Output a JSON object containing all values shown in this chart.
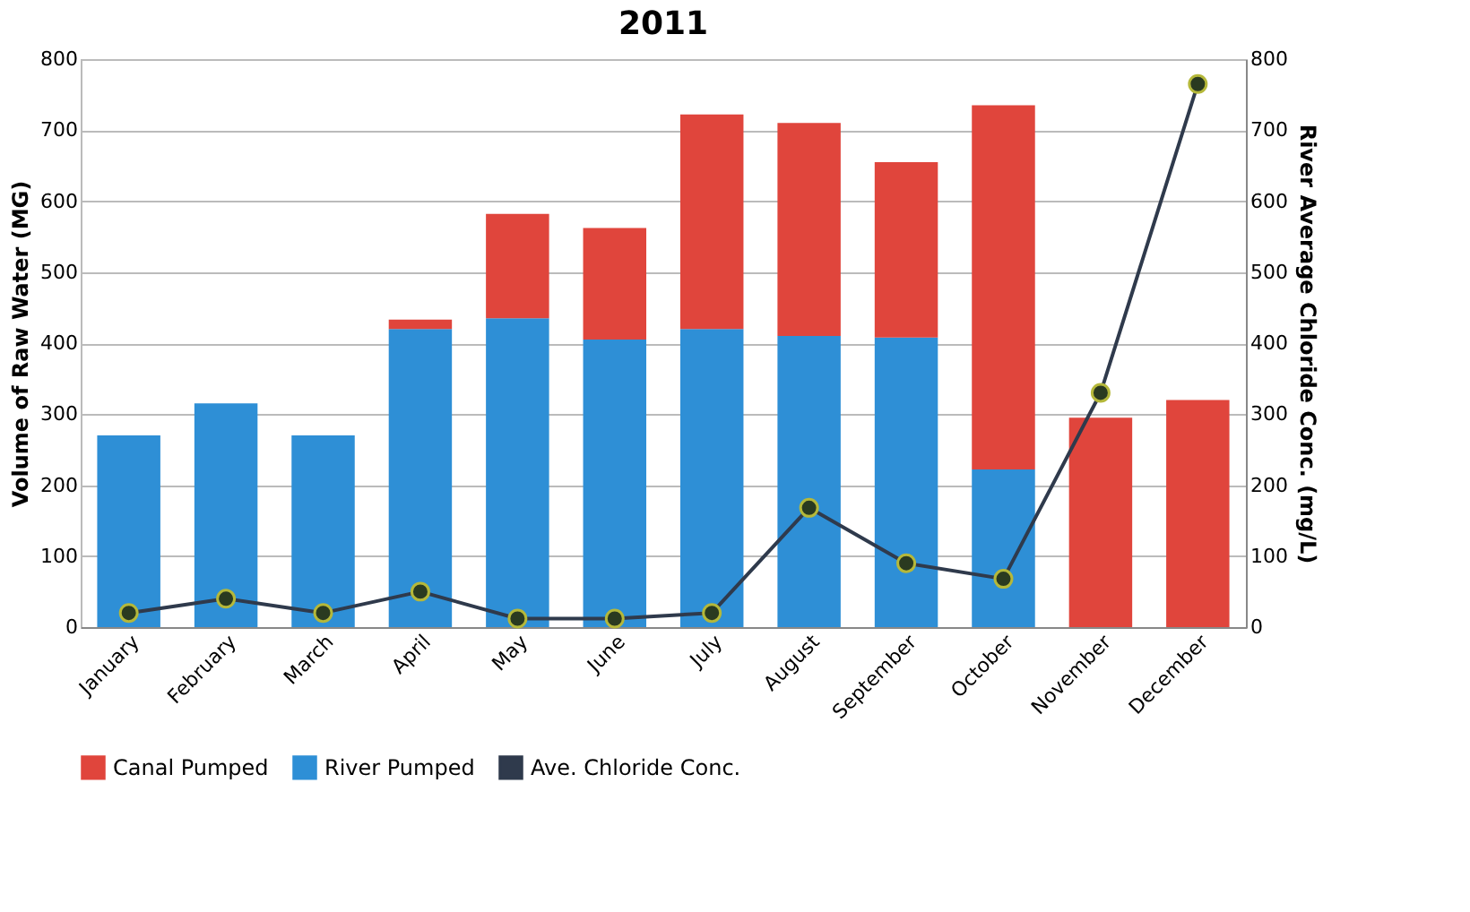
{
  "chart_data": {
    "type": "bar",
    "title": "2011",
    "ylabel": "Volume of Raw Water (MG)",
    "y2label": "River Average Chloride Conc. (mg/L)",
    "categories": [
      "January",
      "February",
      "March",
      "April",
      "May",
      "June",
      "July",
      "August",
      "September",
      "October",
      "November",
      "December"
    ],
    "stacked": true,
    "series": [
      {
        "name": "River Pumped",
        "color": "#2e8fd6",
        "values": [
          270,
          315,
          270,
          420,
          435,
          405,
          420,
          410,
          408,
          222,
          0,
          0
        ]
      },
      {
        "name": "Canal Pumped",
        "color": "#e0453c",
        "values": [
          0,
          0,
          0,
          13,
          147,
          157,
          302,
          300,
          247,
          513,
          295,
          320
        ]
      },
      {
        "name": "Ave. Chloride Conc.",
        "type": "line",
        "axis": "y2",
        "color": "#2f3a4c",
        "marker": "circle",
        "values": [
          20,
          40,
          20,
          50,
          12,
          12,
          20,
          168,
          90,
          68,
          330,
          765
        ]
      }
    ],
    "ylim": [
      0,
      800
    ],
    "yticks": [
      0,
      100,
      200,
      300,
      400,
      500,
      600,
      700,
      800
    ],
    "y2lim": [
      0,
      800
    ],
    "y2ticks": [
      0,
      100,
      200,
      300,
      400,
      500,
      600,
      700,
      800
    ],
    "grid": "y",
    "legend": "bottom"
  }
}
